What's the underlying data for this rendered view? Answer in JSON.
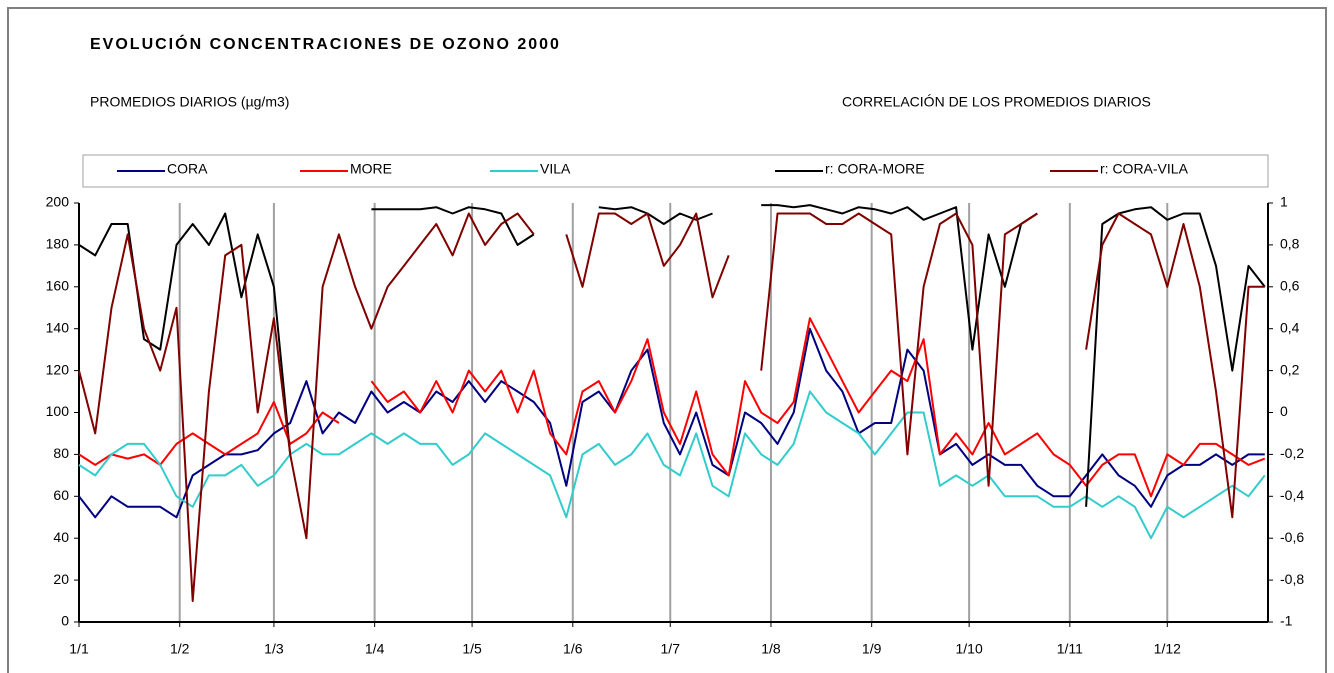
{
  "chart_data": {
    "type": "line",
    "title": "EVOLUCIÓN CONCENTRACIONES DE OZONO 2000",
    "subtitle": "PROMEDIOS DIARIOS (µg/m3)",
    "subtitle_right": "CORRELACIÓN DE LOS PROMEDIOS DIARIOS",
    "x": [
      1,
      6,
      11,
      16,
      21,
      26,
      31,
      36,
      41,
      46,
      51,
      56,
      61,
      66,
      71,
      76,
      81,
      86,
      91,
      96,
      101,
      106,
      111,
      116,
      121,
      126,
      131,
      136,
      141,
      146,
      151,
      156,
      161,
      166,
      171,
      176,
      181,
      186,
      191,
      196,
      201,
      206,
      211,
      216,
      221,
      226,
      231,
      236,
      241,
      246,
      251,
      256,
      261,
      266,
      271,
      276,
      281,
      286,
      291,
      296,
      301,
      306,
      311,
      316,
      321,
      326,
      331,
      336,
      341,
      346,
      351,
      356,
      361,
      366
    ],
    "xlim": [
      1,
      367
    ],
    "xticks": [
      {
        "value": 1,
        "label": "1/1"
      },
      {
        "value": 32,
        "label": "1/2"
      },
      {
        "value": 61,
        "label": "1/3"
      },
      {
        "value": 92,
        "label": "1/4"
      },
      {
        "value": 122,
        "label": "1/5"
      },
      {
        "value": 153,
        "label": "1/6"
      },
      {
        "value": 183,
        "label": "1/7"
      },
      {
        "value": 214,
        "label": "1/8"
      },
      {
        "value": 245,
        "label": "1/9"
      },
      {
        "value": 275,
        "label": "1/10"
      },
      {
        "value": 306,
        "label": "1/11"
      },
      {
        "value": 336,
        "label": "1/12"
      }
    ],
    "ylim": [
      0,
      200
    ],
    "yticks": [
      0,
      20,
      40,
      60,
      80,
      100,
      120,
      140,
      160,
      180,
      200
    ],
    "y2lim": [
      -1,
      1
    ],
    "y2ticks": [
      {
        "value": -1,
        "label": "-1"
      },
      {
        "value": -0.8,
        "label": "-0,8"
      },
      {
        "value": -0.6,
        "label": "-0,6"
      },
      {
        "value": -0.4,
        "label": "-0,4"
      },
      {
        "value": -0.2,
        "label": "-0,2"
      },
      0,
      {
        "value": 0.2,
        "label": "0,2"
      },
      {
        "value": 0.4,
        "label": "0,4"
      },
      {
        "value": 0.6,
        "label": "0,6"
      },
      {
        "value": 0.8,
        "label": "0,8"
      },
      1
    ],
    "grid": "x",
    "series": [
      {
        "name": "CORA",
        "color": "#000080",
        "values": [
          60,
          50,
          60,
          55,
          55,
          55,
          50,
          70,
          75,
          80,
          80,
          82,
          90,
          95,
          115,
          90,
          100,
          95,
          110,
          100,
          105,
          100,
          110,
          105,
          115,
          105,
          115,
          110,
          105,
          95,
          65,
          105,
          110,
          100,
          120,
          130,
          95,
          80,
          100,
          75,
          70,
          100,
          95,
          85,
          100,
          140,
          120,
          110,
          90,
          95,
          95,
          130,
          120,
          80,
          85,
          75,
          80,
          75,
          75,
          65,
          60,
          60,
          70,
          80,
          70,
          65,
          55,
          70,
          75,
          75,
          80,
          75,
          80,
          80
        ]
      },
      {
        "name": "MORE",
        "color": "#ff0000",
        "values": [
          80,
          75,
          80,
          78,
          80,
          75,
          85,
          90,
          85,
          80,
          85,
          90,
          105,
          85,
          90,
          100,
          95,
          null,
          115,
          105,
          110,
          100,
          115,
          100,
          120,
          110,
          120,
          100,
          120,
          90,
          80,
          110,
          115,
          100,
          115,
          135,
          100,
          85,
          110,
          80,
          70,
          115,
          100,
          95,
          105,
          145,
          130,
          115,
          100,
          110,
          120,
          115,
          135,
          80,
          90,
          80,
          95,
          80,
          85,
          90,
          80,
          75,
          65,
          75,
          80,
          80,
          60,
          80,
          75,
          85,
          85,
          80,
          75,
          78
        ]
      },
      {
        "name": "VILA",
        "color": "#33cccc",
        "values": [
          75,
          70,
          80,
          85,
          85,
          75,
          60,
          55,
          70,
          70,
          75,
          65,
          70,
          80,
          85,
          80,
          80,
          85,
          90,
          85,
          90,
          85,
          85,
          75,
          80,
          90,
          85,
          80,
          75,
          70,
          50,
          80,
          85,
          75,
          80,
          90,
          75,
          70,
          90,
          65,
          60,
          90,
          80,
          75,
          85,
          110,
          100,
          95,
          90,
          80,
          90,
          100,
          100,
          65,
          70,
          65,
          70,
          60,
          60,
          60,
          55,
          55,
          60,
          55,
          60,
          55,
          40,
          55,
          50,
          55,
          60,
          65,
          60,
          70
        ]
      },
      {
        "name": "r: CORA-MORE",
        "color": "#000000",
        "axis": "y2",
        "values": [
          0.8,
          0.75,
          0.9,
          0.9,
          0.35,
          0.3,
          0.8,
          0.9,
          0.8,
          0.95,
          0.55,
          0.85,
          0.6,
          -0.2,
          null,
          null,
          null,
          null,
          0.97,
          0.97,
          0.97,
          0.97,
          0.98,
          0.95,
          0.98,
          0.97,
          0.95,
          0.8,
          0.85,
          null,
          0.99,
          null,
          0.98,
          0.97,
          0.98,
          0.95,
          0.9,
          0.95,
          0.92,
          0.95,
          null,
          null,
          0.99,
          0.99,
          0.98,
          0.99,
          0.97,
          0.95,
          0.98,
          0.97,
          0.95,
          0.98,
          0.92,
          0.95,
          0.98,
          0.3,
          0.85,
          0.6,
          0.9,
          0.95,
          null,
          null,
          -0.45,
          0.9,
          0.95,
          0.97,
          0.98,
          0.92,
          0.95,
          0.95,
          0.7,
          0.2,
          0.7,
          0.6
        ]
      },
      {
        "name": "r: CORA-VILA",
        "color": "#800000",
        "axis": "y2",
        "values": [
          0.2,
          -0.1,
          0.5,
          0.85,
          0.4,
          0.2,
          0.5,
          -0.9,
          0.1,
          0.75,
          0.8,
          0,
          0.45,
          -0.2,
          -0.6,
          0.6,
          0.85,
          0.6,
          0.4,
          0.6,
          0.7,
          0.8,
          0.9,
          0.75,
          0.95,
          0.8,
          0.9,
          0.95,
          0.85,
          null,
          0.85,
          0.6,
          0.95,
          0.95,
          0.9,
          0.95,
          0.7,
          0.8,
          0.95,
          0.55,
          0.75,
          null,
          0.2,
          0.95,
          0.95,
          0.95,
          0.9,
          0.9,
          0.95,
          0.9,
          0.85,
          -0.2,
          0.6,
          0.9,
          0.95,
          0.8,
          -0.35,
          0.85,
          0.9,
          0.95,
          null,
          null,
          0.3,
          0.8,
          0.95,
          0.9,
          0.85,
          0.6,
          0.9,
          0.6,
          0.1,
          -0.5,
          0.6,
          0.6
        ]
      }
    ]
  }
}
